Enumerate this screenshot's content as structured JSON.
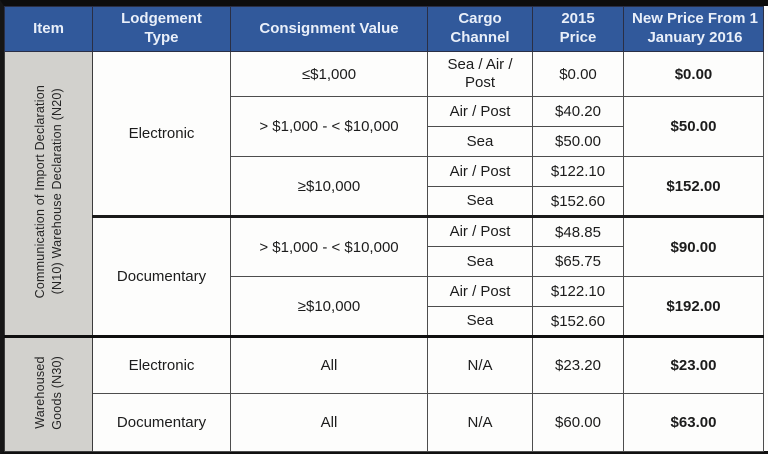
{
  "columns": [
    "Item",
    "Lodgement Type",
    "Consignment Value",
    "Cargo Channel",
    "2015 Price",
    "New Price From 1 January 2016"
  ],
  "colors": {
    "header_bg": "#31599B",
    "header_text": "#E9EFF9",
    "item_column_bg": "#D2D1CD",
    "grid_border": "#4d4d4d",
    "thick_border": "#101010"
  },
  "groups": {
    "n10n20": {
      "item_lines": [
        "Communication of Import Declaration",
        "(N10) Warehouse Declaration (N20)"
      ],
      "electronic": {
        "label": "Electronic",
        "bands": [
          {
            "value": "≤$1,000",
            "channels": [
              "Sea / Air / Post"
            ],
            "prices_2015": [
              "$0.00"
            ],
            "new_price": "$0.00"
          },
          {
            "value": "> $1,000 - < $10,000",
            "channels": [
              "Air / Post",
              "Sea"
            ],
            "prices_2015": [
              "$40.20",
              "$50.00"
            ],
            "new_price": "$50.00"
          },
          {
            "value": "≥$10,000",
            "channels": [
              "Air / Post",
              "Sea"
            ],
            "prices_2015": [
              "$122.10",
              "$152.60"
            ],
            "new_price": "$152.00"
          }
        ]
      },
      "documentary": {
        "label": "Documentary",
        "bands": [
          {
            "value": "> $1,000 - < $10,000",
            "channels": [
              "Air / Post",
              "Sea"
            ],
            "prices_2015": [
              "$48.85",
              "$65.75"
            ],
            "new_price": "$90.00"
          },
          {
            "value": "≥$10,000",
            "channels": [
              "Air / Post",
              "Sea"
            ],
            "prices_2015": [
              "$122.10",
              "$152.60"
            ],
            "new_price": "$192.00"
          }
        ]
      }
    },
    "n30": {
      "item_lines": [
        "Warehoused",
        "Goods (N30)"
      ],
      "rows": [
        {
          "lodgement": "Electronic",
          "value": "All",
          "channel": "N/A",
          "price_2015": "$23.20",
          "new_price": "$23.00"
        },
        {
          "lodgement": "Documentary",
          "value": "All",
          "channel": "N/A",
          "price_2015": "$60.00",
          "new_price": "$63.00"
        }
      ]
    }
  }
}
